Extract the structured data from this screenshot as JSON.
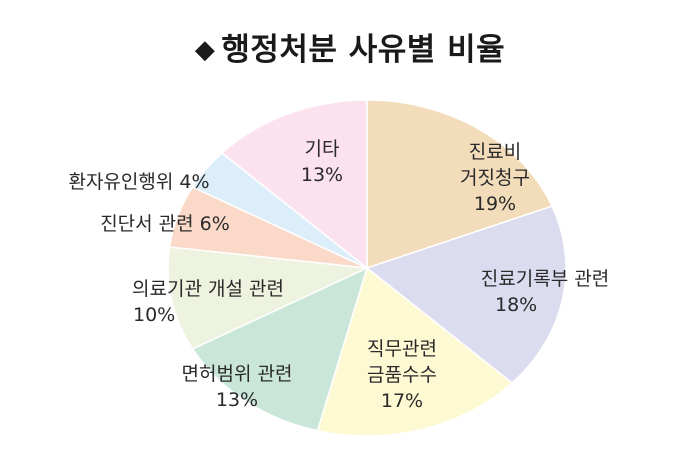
{
  "title_marker": "◆",
  "title": "행정처분 사유별 비율",
  "chart_data": {
    "type": "pie",
    "title": "행정처분 사유별 비율",
    "slices": [
      {
        "label_lines": [
          "진료비",
          "거짓청구"
        ],
        "value_label": "19%",
        "value": 19,
        "color": "#f2dcba"
      },
      {
        "label_lines": [
          "진료기록부 관련"
        ],
        "value_label": "18%",
        "value": 18,
        "color": "#dcdcf0"
      },
      {
        "label_lines": [
          "직무관련",
          "금품수수"
        ],
        "value_label": "17%",
        "value": 17,
        "color": "#fdf9d2"
      },
      {
        "label_lines": [
          "면허범위 관련"
        ],
        "value_label": "13%",
        "value": 13,
        "color": "#c9e6d9"
      },
      {
        "label_lines": [
          "의료기관 개설 관련"
        ],
        "value_label": "10%",
        "value": 10,
        "color": "#eef3df"
      },
      {
        "label_lines": [
          "진단서 관련"
        ],
        "value_label": "6%",
        "value": 6,
        "color": "#fbd9c8"
      },
      {
        "label_lines": [
          "환자유인행위"
        ],
        "value_label": "4%",
        "value": 4,
        "color": "#dbeefa"
      },
      {
        "label_lines": [
          "기타"
        ],
        "value_label": "13%",
        "value": 13,
        "color": "#fbe2ee"
      }
    ]
  }
}
